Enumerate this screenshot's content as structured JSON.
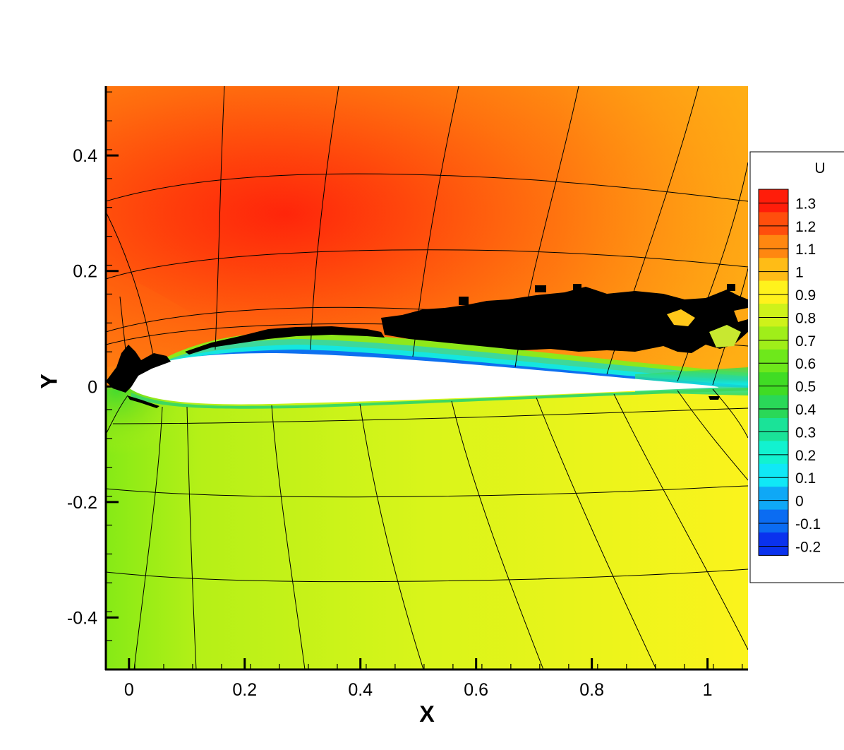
{
  "chart_data": {
    "type": "heatmap",
    "title": "",
    "xlabel": "X",
    "ylabel": "Y",
    "xlim": [
      -0.04,
      1.07
    ],
    "ylim": [
      -0.49,
      0.52
    ],
    "x_ticks": [
      {
        "value": 0,
        "label": "0"
      },
      {
        "value": 0.2,
        "label": "0.2"
      },
      {
        "value": 0.4,
        "label": "0.4"
      },
      {
        "value": 0.6,
        "label": "0.6"
      },
      {
        "value": 0.8,
        "label": "0.8"
      },
      {
        "value": 1,
        "label": "1"
      }
    ],
    "y_ticks": [
      {
        "value": 0.4,
        "label": "0.4"
      },
      {
        "value": 0.2,
        "label": "0.2"
      },
      {
        "value": 0,
        "label": "0"
      },
      {
        "value": -0.2,
        "label": "-0.2"
      },
      {
        "value": -0.4,
        "label": "-0.4"
      }
    ],
    "colorbar": {
      "variable": "U",
      "placement": "right",
      "levels": [
        {
          "value": 1.3,
          "label": "1.3",
          "color": "#ff1d0a"
        },
        {
          "value": 1.2,
          "label": "1.2",
          "color": "#ff4e0c"
        },
        {
          "value": 1.1,
          "label": "1.1",
          "color": "#ff8710"
        },
        {
          "value": 1,
          "label": "1",
          "color": "#ffbc16"
        },
        {
          "value": 0.9,
          "label": "0.9",
          "color": "#fff21c"
        },
        {
          "value": 0.8,
          "label": "0.8",
          "color": "#cef21a"
        },
        {
          "value": 0.7,
          "label": "0.7",
          "color": "#a0ee19"
        },
        {
          "value": 0.6,
          "label": "0.6",
          "color": "#6ee81b"
        },
        {
          "value": 0.5,
          "label": "0.5",
          "color": "#40dc24"
        },
        {
          "value": 0.4,
          "label": "0.4",
          "color": "#2ad858"
        },
        {
          "value": 0.3,
          "label": "0.3",
          "color": "#1ae398"
        },
        {
          "value": 0.2,
          "label": "0.2",
          "color": "#12f2d0"
        },
        {
          "value": 0.1,
          "label": "0.1",
          "color": "#10e8f6"
        },
        {
          "value": 0,
          "label": "0",
          "color": "#0fa8f6"
        },
        {
          "value": -0.1,
          "label": "-0.1",
          "color": "#0b6cf2"
        },
        {
          "value": -0.2,
          "label": "-0.2",
          "color": "#0a32ee"
        }
      ]
    },
    "body": "airfoil (blank interior)",
    "grid": true,
    "features": [
      "curvilinear mesh lines overlaid on contour field",
      "black cell markers along upper surface separation region"
    ]
  }
}
